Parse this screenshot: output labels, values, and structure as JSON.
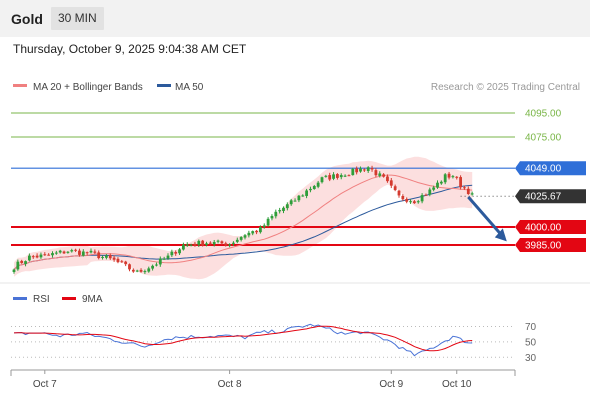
{
  "header": {
    "title": "Gold",
    "timeframe": "30 MIN"
  },
  "datetime": "Thursday, October 9, 2025 9:04:38 AM CET",
  "credit": "Research © 2025 Trading Central",
  "legend": {
    "ma_bb": "MA 20 + Bollinger Bands",
    "ma50": "MA 50"
  },
  "rsi_legend": {
    "rsi": "RSI",
    "ma9": "9MA"
  },
  "colors": {
    "candle_up": "#2e9e3a",
    "candle_down": "#d43a2f",
    "ma20": "#f08080",
    "bands": "#fbd4d4",
    "ma50": "#2c5a9c",
    "resistance": "#2f6fd8",
    "support": "#e30613",
    "target": "#7ab648",
    "current": "#333333",
    "rsi": "#4a73d6",
    "rsi_ma": "#e30613"
  },
  "chart_data": {
    "type": "candlestick",
    "x_labels": [
      "Oct 7",
      "Oct 8",
      "Oct 9",
      "Oct 10"
    ],
    "x_label_index": [
      8,
      56,
      98,
      115
    ],
    "bar_count": 120,
    "ylim": [
      3960,
      4110
    ],
    "price_levels": [
      {
        "label": "4095.00",
        "value": 4095,
        "kind": "target"
      },
      {
        "label": "4075.00",
        "value": 4075,
        "kind": "target"
      },
      {
        "label": "4049.00",
        "value": 4049,
        "kind": "resistance"
      },
      {
        "label": "4025.67",
        "value": 4025.67,
        "kind": "current"
      },
      {
        "label": "4000.00",
        "value": 4000,
        "kind": "support"
      },
      {
        "label": "3985.00",
        "value": 3985,
        "kind": "support"
      }
    ],
    "forecast_arrow": {
      "from_index": 118,
      "from": 4025,
      "to_index": 128,
      "to": 3988
    },
    "anchors": [
      [
        0,
        3967
      ],
      [
        4,
        3975
      ],
      [
        8,
        3976
      ],
      [
        14,
        3980
      ],
      [
        20,
        3978
      ],
      [
        26,
        3972
      ],
      [
        32,
        3962
      ],
      [
        36,
        3968
      ],
      [
        40,
        3975
      ],
      [
        44,
        3985
      ],
      [
        50,
        3987
      ],
      [
        56,
        3986
      ],
      [
        60,
        3994
      ],
      [
        64,
        3998
      ],
      [
        68,
        4012
      ],
      [
        72,
        4020
      ],
      [
        76,
        4030
      ],
      [
        80,
        4040
      ],
      [
        84,
        4043
      ],
      [
        88,
        4046
      ],
      [
        92,
        4050
      ],
      [
        96,
        4040
      ],
      [
        100,
        4025
      ],
      [
        104,
        4022
      ],
      [
        108,
        4030
      ],
      [
        112,
        4042
      ],
      [
        114,
        4043
      ],
      [
        116,
        4035
      ],
      [
        118,
        4030
      ],
      [
        119,
        4026
      ]
    ],
    "rsi": {
      "ylim": [
        20,
        85
      ],
      "ticks": [
        70,
        50,
        30
      ],
      "anchors": [
        [
          0,
          60
        ],
        [
          6,
          62
        ],
        [
          12,
          58
        ],
        [
          18,
          61
        ],
        [
          24,
          55
        ],
        [
          30,
          48
        ],
        [
          34,
          44
        ],
        [
          38,
          52
        ],
        [
          42,
          56
        ],
        [
          48,
          57
        ],
        [
          54,
          58
        ],
        [
          60,
          56
        ],
        [
          64,
          62
        ],
        [
          70,
          64
        ],
        [
          74,
          70
        ],
        [
          78,
          72
        ],
        [
          82,
          66
        ],
        [
          86,
          60
        ],
        [
          90,
          63
        ],
        [
          94,
          58
        ],
        [
          98,
          50
        ],
        [
          102,
          38
        ],
        [
          104,
          33
        ],
        [
          106,
          36
        ],
        [
          110,
          46
        ],
        [
          114,
          57
        ],
        [
          116,
          53
        ],
        [
          119,
          48
        ]
      ]
    }
  }
}
